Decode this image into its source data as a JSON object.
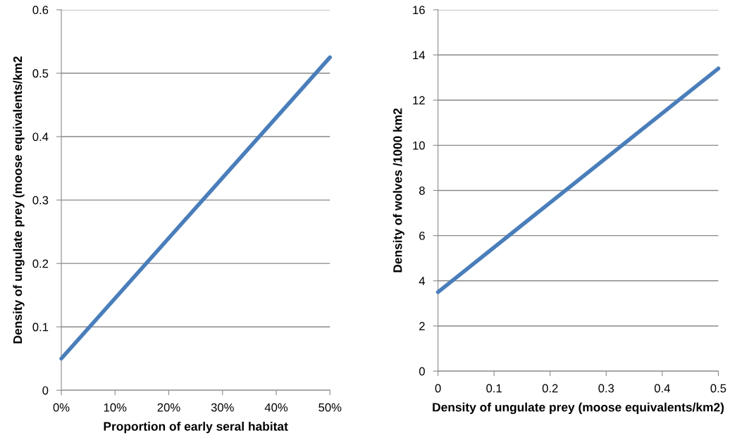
{
  "chart_data": [
    {
      "type": "line",
      "xlabel": "Proportion of early seral habitat",
      "ylabel": "Density of ungulate prey (moose equivalents/km2",
      "x": [
        0,
        50
      ],
      "series": [
        {
          "color": "#4a7ebb",
          "values": [
            0.05,
            0.525
          ]
        }
      ],
      "xlim": [
        0,
        50
      ],
      "xticks": [
        {
          "value": 0,
          "label": "0%"
        },
        {
          "value": 10,
          "label": "10%"
        },
        {
          "value": 20,
          "label": "20%"
        },
        {
          "value": 30,
          "label": "30%"
        },
        {
          "value": 40,
          "label": "40%"
        },
        {
          "value": 50,
          "label": "50%"
        }
      ],
      "ylim": [
        0,
        0.6
      ],
      "yticks": [
        0,
        0.1,
        0.2,
        0.3,
        0.4,
        0.5,
        0.6
      ],
      "grid": "y",
      "legend": false,
      "marker": "none",
      "line_style": "solid"
    },
    {
      "type": "line",
      "xlabel": "Density of ungulate prey (moose equivalents/km2)",
      "ylabel": "Density of wolves /1000 km2",
      "x": [
        0,
        0.5
      ],
      "series": [
        {
          "color": "#4a7ebb",
          "values": [
            3.5,
            13.4
          ]
        }
      ],
      "xlim": [
        0,
        0.5
      ],
      "xticks": [
        0,
        0.1,
        0.2,
        0.3,
        0.4,
        0.5
      ],
      "ylim": [
        0,
        16
      ],
      "yticks": [
        0,
        2,
        4,
        6,
        8,
        10,
        12,
        14,
        16
      ],
      "grid": "y",
      "legend": false,
      "marker": "none",
      "line_style": "solid"
    }
  ]
}
